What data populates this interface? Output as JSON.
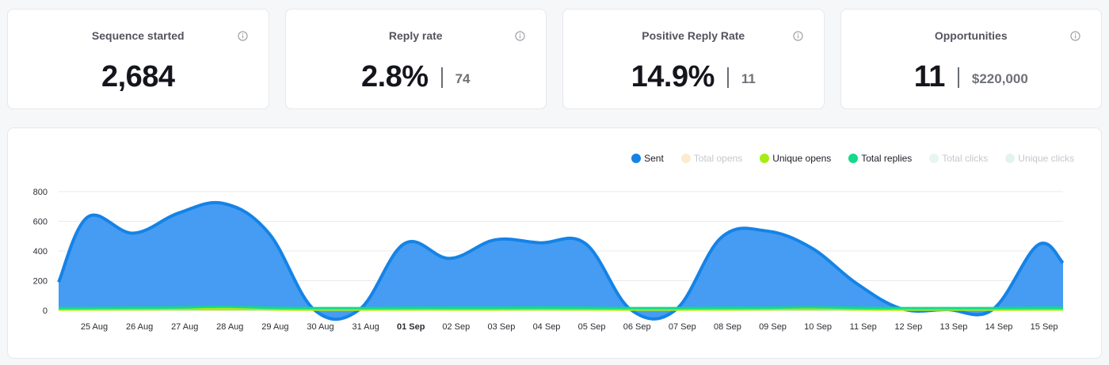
{
  "stats": [
    {
      "title": "Sequence started",
      "value": "2,684",
      "sub": ""
    },
    {
      "title": "Reply rate",
      "value": "2.8%",
      "sub": "74"
    },
    {
      "title": "Positive Reply Rate",
      "value": "14.9%",
      "sub": "11"
    },
    {
      "title": "Opportunities",
      "value": "11",
      "sub": "$220,000"
    }
  ],
  "legend": [
    {
      "label": "Sent",
      "color": "#1583e6",
      "active": true
    },
    {
      "label": "Total opens",
      "color": "#fdebd0",
      "active": false
    },
    {
      "label": "Unique opens",
      "color": "#a6ec18",
      "active": true
    },
    {
      "label": "Total replies",
      "color": "#12da8a",
      "active": true
    },
    {
      "label": "Total clicks",
      "color": "#e8f5f1",
      "active": false
    },
    {
      "label": "Unique clicks",
      "color": "#e3f4ef",
      "active": false
    }
  ],
  "chart_data": {
    "type": "area",
    "categories": [
      "25 Aug",
      "26 Aug",
      "27 Aug",
      "28 Aug",
      "29 Aug",
      "30 Aug",
      "31 Aug",
      "01 Sep",
      "02 Sep",
      "03 Sep",
      "04 Sep",
      "05 Sep",
      "06 Sep",
      "07 Sep",
      "08 Sep",
      "09 Sep",
      "10 Sep",
      "11 Sep",
      "12 Sep",
      "13 Sep",
      "14 Sep",
      "15 Sep"
    ],
    "bold_categories": [
      "01 Sep"
    ],
    "y_ticks": [
      0,
      200,
      400,
      600,
      800
    ],
    "ylim": [
      0,
      800
    ],
    "series": [
      {
        "name": "Sent",
        "color": "#3b97f1",
        "stroke": "#1583e6",
        "values": [
          630,
          520,
          655,
          720,
          520,
          5,
          5,
          450,
          350,
          475,
          455,
          450,
          5,
          5,
          490,
          535,
          420,
          180,
          10,
          5,
          5,
          440
        ],
        "start": 190,
        "end": 320
      },
      {
        "name": "Total replies",
        "color": "#12da8a",
        "stroke": "#12da8a",
        "values": [
          18,
          20,
          22,
          25,
          20,
          18,
          18,
          20,
          20,
          20,
          22,
          20,
          18,
          18,
          20,
          20,
          22,
          20,
          18,
          18,
          18,
          20
        ],
        "start": 18,
        "end": 20
      },
      {
        "name": "Unique opens",
        "color": "#a6ec18",
        "stroke": "#a6ec18",
        "values": [
          3,
          4,
          6,
          12,
          4,
          2,
          2,
          3,
          3,
          3,
          4,
          3,
          2,
          2,
          3,
          4,
          8,
          3,
          2,
          2,
          2,
          3
        ],
        "start": 2,
        "end": 3
      }
    ]
  }
}
